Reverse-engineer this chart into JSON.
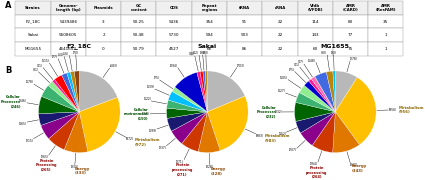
{
  "table_headers": [
    "Strains",
    "Genome-\nlength (bp)",
    "Plasmids",
    "GC\ncontent",
    "CDS",
    "Repeat\nregions",
    "tRNA",
    "rRNA",
    "Vfdb\n(VFDB)",
    "AMR\n(CARD)",
    "AMR\n(ResFAM)"
  ],
  "table_rows": [
    [
      "F2_18C",
      "5439486",
      "3",
      "50.25",
      "5436",
      "354",
      "91",
      "22",
      "114",
      "80",
      "35"
    ],
    [
      "Sakai",
      "5508605",
      "2",
      "50.48",
      "5730",
      "594",
      "503",
      "22",
      "143",
      "77",
      "1"
    ],
    [
      "MG1655",
      "4641652",
      "0",
      "50.79",
      "4527",
      "66",
      "86",
      "22",
      "60",
      "75",
      "1"
    ]
  ],
  "pie_titles": [
    "F2_18C",
    "Sakai",
    "MG1655"
  ],
  "pies": [
    {
      "values": [
        683,
        972,
        333,
        265,
        215,
        165,
        246,
        178,
        81,
        41,
        115,
        77,
        50,
        56,
        70
      ],
      "colors": [
        "#b8b8b8",
        "#ffc000",
        "#e07800",
        "#cd3700",
        "#8b008b",
        "#191970",
        "#006400",
        "#3cb371",
        "#90ee90",
        "#ff1493",
        "#ff0000",
        "#4169e1",
        "#00bfff",
        "#b8860b",
        "#8b4513"
      ],
      "cat_labels": [
        [
          0,
          "[683]",
          "left"
        ],
        [
          1,
          "Metabolism\n(972)",
          "right"
        ],
        [
          2,
          "Energy\n(333)",
          "right"
        ],
        [
          3,
          "Protein\nProcessing\n(265)",
          "bottom"
        ],
        [
          4,
          "[215]",
          "left"
        ],
        [
          5,
          "[165]",
          "left"
        ],
        [
          6,
          "Cellular\nProcesses\n(246)",
          "left"
        ],
        [
          7,
          "(178)",
          "left"
        ],
        [
          8,
          "(81)",
          "left"
        ],
        [
          9,
          "(41)",
          "left"
        ],
        [
          10,
          "(115)",
          "bottom"
        ],
        [
          11,
          "(77)",
          "bottom"
        ],
        [
          12,
          "(50)",
          "bottom"
        ],
        [
          13,
          "",
          "bottom"
        ],
        [
          14,
          "",
          "bottom"
        ]
      ]
    },
    {
      "values": [
        703,
        983,
        328,
        271,
        237,
        199,
        150,
        122,
        139,
        75,
        394,
        48,
        42,
        36,
        30
      ],
      "colors": [
        "#b8b8b8",
        "#ffc000",
        "#e07800",
        "#cd3700",
        "#8b008b",
        "#191970",
        "#006400",
        "#3cb371",
        "#00bfff",
        "#90ee90",
        "#0000cd",
        "#ff1493",
        "#ff0000",
        "#4169e1",
        "#b8860b"
      ],
      "cat_labels": [
        [
          0,
          "(703)",
          "left"
        ],
        [
          1,
          "Metabolism\n(983)",
          "right"
        ],
        [
          2,
          "Energy\n(328)",
          "right"
        ],
        [
          3,
          "Protein\nprocessing\n(271)",
          "bottom"
        ],
        [
          4,
          "(237)",
          "left"
        ],
        [
          5,
          "(199)",
          "left"
        ],
        [
          6,
          "Cellular\nenvironment\n(150)",
          "left"
        ],
        [
          7,
          "(122)",
          "left"
        ],
        [
          8,
          "(139)",
          "left"
        ],
        [
          9,
          "(75)",
          "left"
        ],
        [
          10,
          "(394)",
          "right"
        ],
        [
          11,
          "(48)",
          "bottom"
        ],
        [
          12,
          "(42)",
          "bottom"
        ],
        [
          13,
          "(36)",
          "left"
        ],
        [
          14,
          "",
          "left"
        ]
      ]
    },
    {
      "values": [
        278,
        956,
        343,
        264,
        207,
        152,
        232,
        127,
        105,
        75,
        41,
        47,
        5,
        148,
        80,
        30
      ],
      "colors": [
        "#b8b8b8",
        "#ffc000",
        "#e07800",
        "#cd3700",
        "#8b008b",
        "#191970",
        "#006400",
        "#3cb371",
        "#90ee90",
        "#0000cd",
        "#ff1493",
        "#ff69b4",
        "#000000",
        "#4169e1",
        "#b8860b",
        "#00bfff"
      ],
      "cat_labels": [
        [
          0,
          "(278)",
          "right"
        ],
        [
          1,
          "Metabolism\n(956)",
          "right"
        ],
        [
          2,
          "Energy\n(343)",
          "right"
        ],
        [
          3,
          "Protein\nprocessing\n(264)",
          "bottom"
        ],
        [
          4,
          "(207)",
          "left"
        ],
        [
          5,
          "(152)",
          "left"
        ],
        [
          6,
          "Cellular\nProcesses\n(232)",
          "left"
        ],
        [
          7,
          "(127)",
          "left"
        ],
        [
          8,
          "(105)",
          "left"
        ],
        [
          9,
          "(75)",
          "left"
        ],
        [
          10,
          "(41)",
          "left"
        ],
        [
          11,
          "(47)",
          "left"
        ],
        [
          12,
          "(5)",
          "left"
        ],
        [
          13,
          "(148)",
          "bottom"
        ],
        [
          14,
          "(80)",
          "right"
        ],
        [
          15,
          "",
          "right"
        ]
      ]
    }
  ],
  "bg": "#ffffff"
}
